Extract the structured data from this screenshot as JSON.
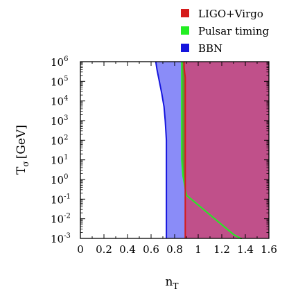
{
  "chart_data": {
    "type": "area",
    "xlabel": "n",
    "xlabel_sub": "T",
    "ylabel": "T",
    "ylabel_sub": "σ",
    "ylabel_unit": "[GeV]",
    "xlim": [
      0,
      1.6
    ],
    "ylim_log10": [
      -3,
      6
    ],
    "y_scale": "log",
    "x_ticks": [
      "0",
      "0.2",
      "0.4",
      "0.6",
      "0.8",
      "1",
      "1.2",
      "1.4",
      "1.6"
    ],
    "x_tick_values": [
      0,
      0.2,
      0.4,
      0.6,
      0.8,
      1,
      1.2,
      1.4,
      1.6
    ],
    "y_tick_base": "10",
    "y_tick_exponents": [
      "-3",
      "-2",
      "-1",
      "0",
      "1",
      "2",
      "3",
      "4",
      "5",
      "6"
    ],
    "legend_position": "top-right",
    "series": [
      {
        "name": "LIGO+Virgo",
        "color": "#d51b1b",
        "fill": "#c0508a",
        "boundary_n": [
          0.88,
          0.88,
          0.89,
          0.89,
          0.89,
          0.89,
          0.89,
          0.89,
          0.89,
          0.89,
          0.89
        ],
        "boundary_log10T": [
          6,
          5.7,
          5.2,
          4.5,
          3.5,
          2.5,
          1.5,
          0.5,
          -0.4,
          -1,
          -3
        ]
      },
      {
        "name": "Pulsar timing",
        "color": "#22ee22",
        "fill": "#5a9a3a",
        "boundary_n": [
          0.86,
          0.86,
          0.86,
          0.86,
          0.86,
          0.86,
          0.86,
          0.87,
          0.9,
          1.0,
          1.1,
          1.2,
          1.3,
          1.36,
          1.37
        ],
        "boundary_log10T": [
          6,
          5.8,
          5,
          4,
          3,
          2,
          1,
          0.2,
          -0.8,
          -1.3,
          -1.8,
          -2.3,
          -2.8,
          -3,
          -3
        ]
      },
      {
        "name": "BBN",
        "color": "#1515dd",
        "fill": "#8a8cf8",
        "boundary_n": [
          0.64,
          0.65,
          0.67,
          0.69,
          0.71,
          0.72,
          0.73,
          0.73,
          0.73,
          0.73,
          0.73,
          0.73
        ],
        "boundary_log10T": [
          6,
          5.6,
          5,
          4.4,
          3.7,
          3,
          2,
          1,
          0,
          -1,
          -2,
          -3
        ]
      }
    ]
  }
}
